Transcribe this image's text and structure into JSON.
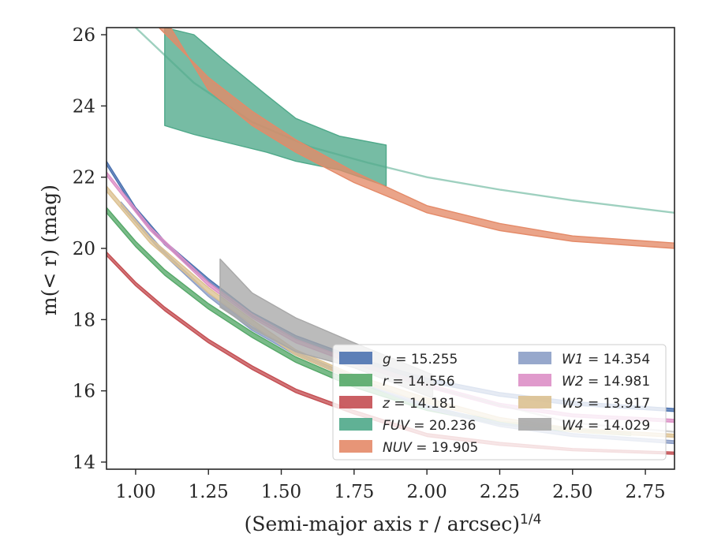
{
  "chart_data": {
    "type": "line",
    "xlabel": "(Semi-major axis r / arcsec)",
    "xlabel_sup": "1/4",
    "ylabel": "m(< r) (mag)",
    "xlim": [
      0.9,
      2.85
    ],
    "ylim": [
      26.2,
      13.8
    ],
    "y_inverted": true,
    "grid": false,
    "legend_placement": "lower-right",
    "xticks": [
      1.0,
      1.25,
      1.5,
      1.75,
      2.0,
      2.25,
      2.5,
      2.75
    ],
    "xtick_labels": [
      "1.00",
      "1.25",
      "1.50",
      "1.75",
      "2.00",
      "2.25",
      "2.50",
      "2.75"
    ],
    "yticks": [
      14,
      16,
      18,
      20,
      22,
      24,
      26
    ],
    "ytick_labels": [
      "14",
      "16",
      "18",
      "20",
      "22",
      "24",
      "26"
    ],
    "series": [
      {
        "name": "g = 15.255",
        "var": "g",
        "value": "15.255",
        "color": "#4c72b0",
        "lower": [
          [
            0.9,
            22.45
          ],
          [
            1.0,
            21.15
          ],
          [
            1.1,
            20.2
          ],
          [
            1.25,
            19.15
          ],
          [
            1.4,
            18.2
          ],
          [
            1.55,
            17.55
          ],
          [
            1.75,
            16.95
          ],
          [
            2.0,
            16.35
          ],
          [
            2.25,
            15.95
          ],
          [
            2.5,
            15.7
          ],
          [
            2.85,
            15.5
          ]
        ],
        "upper": [
          [
            0.9,
            22.35
          ],
          [
            1.0,
            21.05
          ],
          [
            1.1,
            20.1
          ],
          [
            1.25,
            19.05
          ],
          [
            1.4,
            18.1
          ],
          [
            1.55,
            17.45
          ],
          [
            1.75,
            16.85
          ],
          [
            2.0,
            16.25
          ],
          [
            2.25,
            15.85
          ],
          [
            2.5,
            15.6
          ],
          [
            2.85,
            15.42
          ]
        ]
      },
      {
        "name": "r = 14.556",
        "var": "r",
        "value": "14.556",
        "color": "#55a868",
        "lower": [
          [
            0.9,
            21.15
          ],
          [
            1.0,
            20.2
          ],
          [
            1.1,
            19.4
          ],
          [
            1.25,
            18.45
          ],
          [
            1.4,
            17.65
          ],
          [
            1.55,
            16.95
          ],
          [
            1.75,
            16.25
          ],
          [
            2.0,
            15.55
          ],
          [
            2.25,
            15.15
          ],
          [
            2.5,
            14.95
          ],
          [
            2.7,
            14.85
          ]
        ],
        "upper": [
          [
            0.9,
            21.0
          ],
          [
            1.0,
            20.05
          ],
          [
            1.1,
            19.25
          ],
          [
            1.25,
            18.3
          ],
          [
            1.4,
            17.5
          ],
          [
            1.55,
            16.8
          ],
          [
            1.75,
            16.1
          ],
          [
            2.0,
            15.45
          ],
          [
            2.25,
            15.05
          ],
          [
            2.5,
            14.85
          ],
          [
            2.7,
            14.75
          ]
        ]
      },
      {
        "name": "z = 14.181",
        "var": "z",
        "value": "14.181",
        "color": "#c44e52",
        "lower": [
          [
            0.9,
            19.9
          ],
          [
            1.0,
            19.05
          ],
          [
            1.1,
            18.35
          ],
          [
            1.25,
            17.45
          ],
          [
            1.4,
            16.7
          ],
          [
            1.55,
            16.05
          ],
          [
            1.75,
            15.45
          ],
          [
            2.0,
            14.8
          ],
          [
            2.25,
            14.55
          ],
          [
            2.5,
            14.38
          ],
          [
            2.85,
            14.28
          ]
        ],
        "upper": [
          [
            0.9,
            19.8
          ],
          [
            1.0,
            18.95
          ],
          [
            1.1,
            18.25
          ],
          [
            1.25,
            17.35
          ],
          [
            1.4,
            16.6
          ],
          [
            1.55,
            15.95
          ],
          [
            1.75,
            15.35
          ],
          [
            2.0,
            14.72
          ],
          [
            2.25,
            14.47
          ],
          [
            2.5,
            14.32
          ],
          [
            2.85,
            14.22
          ]
        ]
      },
      {
        "name": "FUV = 20.236",
        "var": "FUV",
        "value": "20.236",
        "color": "#4fa98a",
        "lower": [
          [
            1.1,
            26.2
          ],
          [
            1.2,
            26.0
          ],
          [
            1.3,
            25.3
          ],
          [
            1.45,
            24.3
          ],
          [
            1.55,
            23.65
          ],
          [
            1.7,
            23.15
          ],
          [
            1.86,
            22.9
          ]
        ],
        "upper": [
          [
            1.1,
            23.45
          ],
          [
            1.2,
            23.2
          ],
          [
            1.3,
            23.0
          ],
          [
            1.45,
            22.7
          ],
          [
            1.55,
            22.45
          ],
          [
            1.7,
            22.2
          ],
          [
            1.86,
            21.75
          ]
        ],
        "extension": [
          [
            1.0,
            26.2
          ],
          [
            1.2,
            24.65
          ],
          [
            1.4,
            23.55
          ],
          [
            1.6,
            22.85
          ],
          [
            1.8,
            22.4
          ],
          [
            2.0,
            22.0
          ],
          [
            2.25,
            21.65
          ],
          [
            2.5,
            21.35
          ],
          [
            2.85,
            21.0
          ]
        ]
      },
      {
        "name": "NUV = 19.905",
        "var": "NUV",
        "value": "19.905",
        "color": "#e48a68",
        "lower": [
          [
            1.08,
            26.2
          ],
          [
            1.25,
            24.8
          ],
          [
            1.4,
            23.85
          ],
          [
            1.55,
            23.05
          ],
          [
            1.75,
            22.15
          ],
          [
            2.0,
            21.2
          ],
          [
            2.25,
            20.7
          ],
          [
            2.5,
            20.35
          ],
          [
            2.85,
            20.15
          ]
        ],
        "upper": [
          [
            1.12,
            26.2
          ],
          [
            1.25,
            24.45
          ],
          [
            1.4,
            23.45
          ],
          [
            1.55,
            22.7
          ],
          [
            1.75,
            21.85
          ],
          [
            2.0,
            21.0
          ],
          [
            2.25,
            20.5
          ],
          [
            2.5,
            20.2
          ],
          [
            2.85,
            20.0
          ]
        ]
      },
      {
        "name": "W1 = 14.354",
        "var": "W1",
        "value": "14.354",
        "color": "#8c9ec6",
        "lower": [
          [
            0.95,
            21.3
          ],
          [
            1.1,
            19.9
          ],
          [
            1.25,
            18.75
          ],
          [
            1.4,
            17.8
          ],
          [
            1.55,
            17.1
          ],
          [
            1.75,
            16.4
          ],
          [
            2.0,
            15.6
          ],
          [
            2.25,
            15.1
          ],
          [
            2.5,
            14.8
          ],
          [
            2.85,
            14.6
          ]
        ],
        "upper": [
          [
            0.95,
            21.2
          ],
          [
            1.1,
            19.8
          ],
          [
            1.25,
            18.65
          ],
          [
            1.4,
            17.7
          ],
          [
            1.55,
            17.0
          ],
          [
            1.75,
            16.3
          ],
          [
            2.0,
            15.5
          ],
          [
            2.25,
            15.0
          ],
          [
            2.5,
            14.72
          ],
          [
            2.85,
            14.52
          ]
        ]
      },
      {
        "name": "W2 = 14.981",
        "var": "W2",
        "value": "14.981",
        "color": "#dd8fc6",
        "lower": [
          [
            0.9,
            22.15
          ],
          [
            1.05,
            20.6
          ],
          [
            1.25,
            19.05
          ],
          [
            1.4,
            18.15
          ],
          [
            1.55,
            17.45
          ],
          [
            1.75,
            16.85
          ],
          [
            2.0,
            16.2
          ],
          [
            2.25,
            15.65
          ],
          [
            2.5,
            15.35
          ],
          [
            2.85,
            15.2
          ]
        ],
        "upper": [
          [
            0.9,
            22.05
          ],
          [
            1.05,
            20.5
          ],
          [
            1.25,
            18.95
          ],
          [
            1.4,
            18.05
          ],
          [
            1.55,
            17.35
          ],
          [
            1.75,
            16.75
          ],
          [
            2.0,
            16.1
          ],
          [
            2.25,
            15.55
          ],
          [
            2.5,
            15.27
          ],
          [
            2.85,
            15.12
          ]
        ]
      },
      {
        "name": "W3 = 13.917",
        "var": "W3",
        "value": "13.917",
        "color": "#dcc191",
        "lower": [
          [
            0.9,
            21.75
          ],
          [
            1.05,
            20.3
          ],
          [
            1.25,
            18.9
          ],
          [
            1.4,
            18.0
          ],
          [
            1.55,
            17.15
          ],
          [
            1.75,
            16.45
          ],
          [
            2.0,
            15.8
          ],
          [
            2.25,
            15.25
          ],
          [
            2.5,
            14.95
          ],
          [
            2.85,
            14.78
          ]
        ],
        "upper": [
          [
            0.9,
            21.6
          ],
          [
            1.05,
            20.15
          ],
          [
            1.25,
            18.75
          ],
          [
            1.4,
            17.85
          ],
          [
            1.55,
            17.0
          ],
          [
            1.75,
            16.3
          ],
          [
            2.0,
            15.65
          ],
          [
            2.25,
            15.15
          ],
          [
            2.5,
            14.85
          ],
          [
            2.85,
            14.7
          ]
        ]
      },
      {
        "name": "W4 = 14.029",
        "var": "W4",
        "value": "14.029",
        "color": "#a8a8a8",
        "lower": [
          [
            1.29,
            19.7
          ],
          [
            1.4,
            18.75
          ],
          [
            1.55,
            18.05
          ],
          [
            1.75,
            17.35
          ],
          [
            2.02,
            16.45
          ]
        ],
        "upper": [
          [
            1.29,
            18.35
          ],
          [
            1.4,
            17.75
          ],
          [
            1.55,
            17.1
          ],
          [
            1.75,
            16.65
          ],
          [
            2.02,
            15.8
          ]
        ],
        "extension": [
          [
            2.02,
            16.1
          ],
          [
            2.25,
            15.6
          ],
          [
            2.5,
            15.1
          ],
          [
            2.85,
            14.85
          ]
        ]
      }
    ]
  }
}
